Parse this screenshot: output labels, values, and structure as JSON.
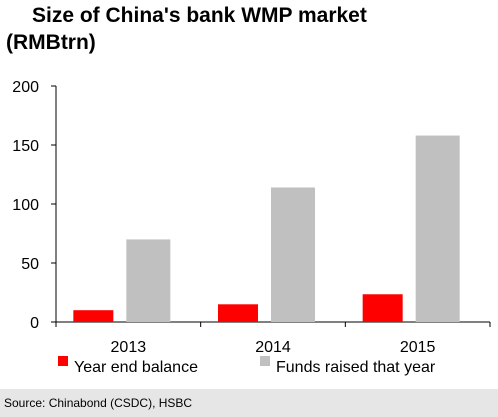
{
  "title_line1": "Size of China's bank WMP market",
  "title_line2": "(RMBtrn)",
  "source": "Source: Chinabond (CSDC), HSBC",
  "chart_data": {
    "type": "bar",
    "title": "Size of China's bank WMP market (RMBtrn)",
    "categories": [
      "2013",
      "2014",
      "2015"
    ],
    "series": [
      {
        "name": "Year end balance",
        "values": [
          10,
          15,
          23.5
        ],
        "color": "#ff0000"
      },
      {
        "name": "Funds raised that year",
        "values": [
          70,
          114,
          158
        ],
        "color": "#c0c0c0"
      }
    ],
    "ylim": [
      0,
      200
    ],
    "yticks": [
      0,
      50,
      100,
      150,
      200
    ],
    "xlabel": "",
    "ylabel": "",
    "grid": false,
    "legend_position": "bottom"
  }
}
